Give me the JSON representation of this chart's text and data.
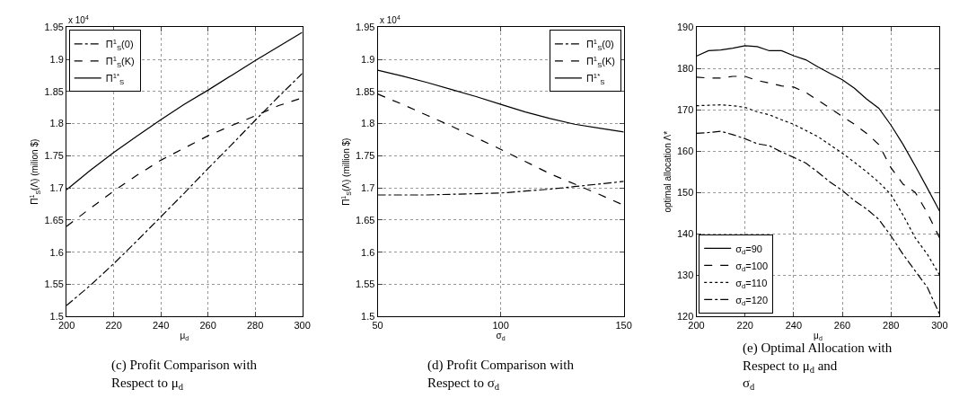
{
  "chart_data": [
    {
      "type": "line",
      "title": "(c) Profit Comparison with Respect to μ$_{d}$",
      "xlabel": "μ$_{d}$",
      "ylabel": "Π$^{1}$$_{S}$(Λ) (milion $)",
      "annotations": [
        "x 10$^{4}$"
      ],
      "x": [
        200,
        210,
        220,
        230,
        240,
        250,
        260,
        270,
        280,
        290,
        300
      ],
      "series": [
        {
          "name": "Π$^{1}$$_{S}$(0)",
          "color": "#000000",
          "line_style": "dashdot",
          "values": [
            1.517,
            1.548,
            1.582,
            1.618,
            1.655,
            1.692,
            1.73,
            1.767,
            1.805,
            1.842,
            1.878
          ]
        },
        {
          "name": "Π$^{1}$$_{S}$(K)",
          "color": "#000000",
          "line_style": "dashed",
          "values": [
            1.64,
            1.668,
            1.695,
            1.72,
            1.743,
            1.762,
            1.781,
            1.797,
            1.812,
            1.828,
            1.84
          ]
        },
        {
          "name": "Π$^{1*}$$_{S}$",
          "color": "#000000",
          "line_style": "solid",
          "values": [
            1.697,
            1.727,
            1.755,
            1.781,
            1.806,
            1.83,
            1.852,
            1.875,
            1.898,
            1.92,
            1.942
          ]
        }
      ],
      "xlim": [
        200,
        300
      ],
      "xticks": [
        200,
        220,
        240,
        260,
        280,
        300
      ],
      "ylim": [
        1.5,
        1.95
      ],
      "yticks": [
        1.5,
        1.55,
        1.6,
        1.65,
        1.7,
        1.75,
        1.8,
        1.85,
        1.9,
        1.95
      ],
      "grid": true,
      "legend": "top left"
    },
    {
      "type": "line",
      "title": "(d) Profit Comparison with Respect to σ$_{d}$",
      "xlabel": "σ$_{d}$",
      "ylabel": "Π$^{1}$$_{S}$(Λ) (million $)",
      "annotations": [
        "x 10$^{4}$"
      ],
      "x": [
        50,
        60,
        70,
        80,
        90,
        100,
        110,
        120,
        130,
        140,
        150
      ],
      "series": [
        {
          "name": "Π$^{1}$$_{S}$(0)",
          "color": "#000000",
          "line_style": "dashdot",
          "values": [
            1.689,
            1.689,
            1.689,
            1.69,
            1.691,
            1.692,
            1.695,
            1.698,
            1.702,
            1.706,
            1.71
          ]
        },
        {
          "name": "Π$^{1}$$_{S}$(K)",
          "color": "#000000",
          "line_style": "dashed",
          "values": [
            1.846,
            1.83,
            1.813,
            1.796,
            1.778,
            1.76,
            1.741,
            1.722,
            1.706,
            1.69,
            1.673
          ]
        },
        {
          "name": "Π$^{1*}$$_{S}$",
          "color": "#000000",
          "line_style": "solid",
          "values": [
            1.883,
            1.874,
            1.864,
            1.853,
            1.842,
            1.83,
            1.818,
            1.808,
            1.799,
            1.793,
            1.787
          ]
        }
      ],
      "xlim": [
        50,
        150
      ],
      "xticks": [
        50,
        100,
        150
      ],
      "ylim": [
        1.5,
        1.95
      ],
      "yticks": [
        1.5,
        1.55,
        1.6,
        1.65,
        1.7,
        1.75,
        1.8,
        1.85,
        1.9,
        1.95
      ],
      "grid": true,
      "legend": "top right"
    },
    {
      "type": "line",
      "title": "(e) Optimal Allocation with Respect to μ$_{d}$ and σ$_{d}$",
      "xlabel": "μ$_{d}$",
      "ylabel": "optimal allocation Λ*",
      "x": [
        200,
        205,
        210,
        215,
        220,
        225,
        230,
        235,
        240,
        245,
        250,
        255,
        260,
        265,
        270,
        275,
        280,
        285,
        290,
        295,
        300
      ],
      "series": [
        {
          "name": "σ$_{d}$=90",
          "color": "#000000",
          "line_style": "solid",
          "values": [
            183,
            184.3,
            184.5,
            184.9,
            185.5,
            185.3,
            184.3,
            184.3,
            183.1,
            182.1,
            180.4,
            178.8,
            177.3,
            175.2,
            172.6,
            170.4,
            166.3,
            161.6,
            156.4,
            151,
            145.5
          ]
        },
        {
          "name": "σ$_{d}$=100",
          "color": "#000000",
          "line_style": "dashed",
          "values": [
            177.9,
            177.7,
            177.7,
            178.1,
            178.1,
            177.1,
            176.5,
            175.8,
            175.5,
            174.2,
            172.3,
            170.4,
            168.4,
            166.5,
            164.3,
            161.6,
            156,
            152,
            150,
            145,
            139
          ]
        },
        {
          "name": "σ$_{d}$=110",
          "color": "#000000",
          "line_style": "dotted",
          "values": [
            171,
            171.1,
            171.2,
            171,
            170.6,
            169.5,
            168.8,
            167.6,
            166.5,
            165,
            163.5,
            161.5,
            159.5,
            157.3,
            155,
            152.5,
            149.5,
            144.5,
            139,
            135,
            130
          ]
        },
        {
          "name": "σ$_{d}$=120",
          "color": "#000000",
          "line_style": "dashdot",
          "values": [
            164.3,
            164.5,
            164.8,
            164,
            163,
            161.8,
            161.3,
            159.8,
            158.5,
            157.1,
            154.9,
            152.5,
            150.5,
            148,
            146,
            143.5,
            139.5,
            135,
            131,
            127,
            120.5
          ]
        }
      ],
      "xlim": [
        200,
        300
      ],
      "xticks": [
        200,
        220,
        240,
        260,
        280,
        300
      ],
      "ylim": [
        120,
        190
      ],
      "yticks": [
        120,
        130,
        140,
        150,
        160,
        170,
        180,
        190
      ],
      "grid": true,
      "legend": "bottom left"
    }
  ]
}
